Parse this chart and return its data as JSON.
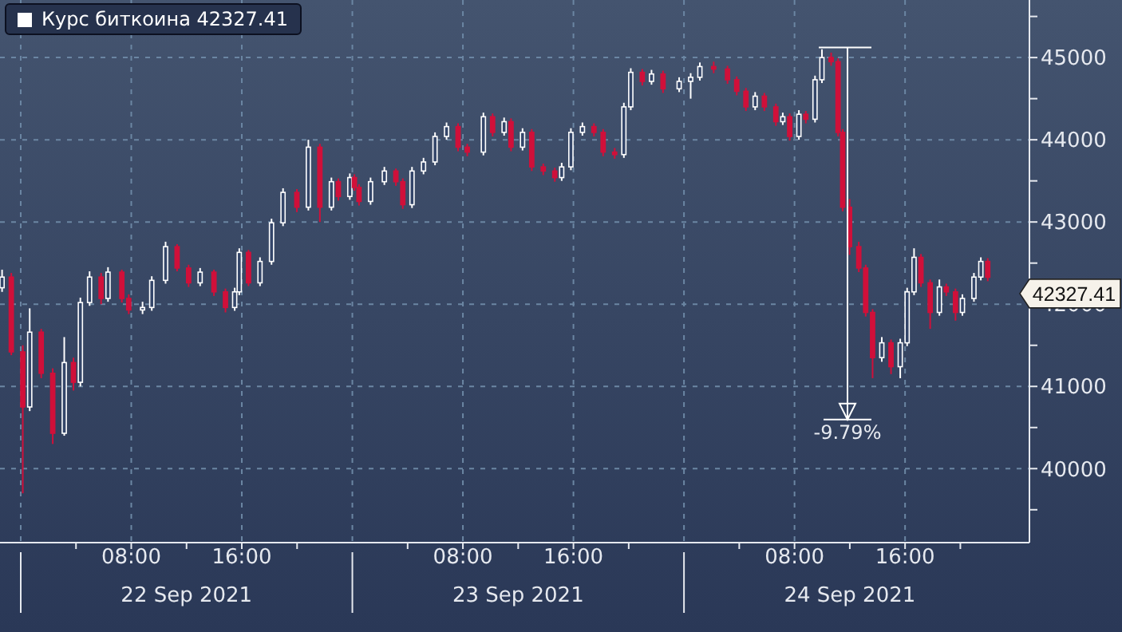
{
  "chart_data": {
    "type": "candlestick",
    "legend": "top left",
    "grid": true,
    "xlim": [
      "2021-09-21T22:30",
      "2021-09-25T01:00"
    ],
    "xticks": [
      {
        "value": "2021-09-22T04:00",
        "label": null
      },
      {
        "value": "2021-09-22T08:00",
        "label": "08:00"
      },
      {
        "value": "2021-09-22T12:00",
        "label": null
      },
      {
        "value": "2021-09-22T16:00",
        "label": "16:00"
      },
      {
        "value": "2021-09-22T20:00",
        "label": null
      },
      {
        "value": "2021-09-23T04:00",
        "label": null
      },
      {
        "value": "2021-09-23T08:00",
        "label": "08:00"
      },
      {
        "value": "2021-09-23T12:00",
        "label": null
      },
      {
        "value": "2021-09-23T16:00",
        "label": "16:00"
      },
      {
        "value": "2021-09-23T20:00",
        "label": null
      },
      {
        "value": "2021-09-24T04:00",
        "label": null
      },
      {
        "value": "2021-09-24T08:00",
        "label": "08:00"
      },
      {
        "value": "2021-09-24T12:00",
        "label": null
      },
      {
        "value": "2021-09-24T16:00",
        "label": "16:00"
      },
      {
        "value": "2021-09-24T20:00",
        "label": null
      }
    ],
    "x2lim": [
      "2021-09-21T22:30",
      "2021-09-25T01:00"
    ],
    "x2ticks": [
      {
        "value": "2021-09-22T00:00",
        "label": null
      },
      {
        "value": "2021-09-22T12:00",
        "label": "22 Sep 2021"
      },
      {
        "value": "2021-09-23T00:00",
        "label": null
      },
      {
        "value": "2021-09-23T12:00",
        "label": "23 Sep 2021"
      },
      {
        "value": "2021-09-24T00:00",
        "label": null
      },
      {
        "value": "2021-09-24T12:00",
        "label": "24 Sep 2021"
      }
    ],
    "ylim": [
      39100,
      45700
    ],
    "yticks": [
      {
        "value": 39500,
        "label": null
      },
      40000,
      {
        "value": 40500,
        "label": null
      },
      41000,
      {
        "value": 41500,
        "label": null
      },
      42000,
      {
        "value": 42500,
        "label": null
      },
      43000,
      {
        "value": 43500,
        "label": null
      },
      44000,
      {
        "value": 44500,
        "label": null
      },
      45000,
      {
        "value": 45500,
        "label": null
      }
    ],
    "annotations": [
      "-9.79%"
    ],
    "series": [
      {
        "name": "Курс биткоина 42327.41",
        "color": "#ffffff",
        "colors": [
          "#ffffff",
          "#d0103a",
          "#d0103a",
          "#ffffff",
          "#d0103a",
          "#d0103a",
          "#ffffff",
          "#d0103a",
          "#ffffff",
          "#ffffff",
          "#d0103a",
          "#ffffff",
          "#d0103a",
          "#d0103a",
          "#ffffff",
          "#ffffff",
          "#ffffff",
          "#d0103a",
          "#d0103a",
          "#ffffff",
          "#d0103a",
          "#d0103a",
          "#ffffff",
          "#ffffff",
          "#d0103a",
          "#ffffff",
          "#ffffff",
          "#ffffff",
          "#d0103a",
          "#ffffff",
          "#d0103a",
          "#ffffff",
          "#d0103a",
          "#ffffff",
          "#d0103a",
          "#d0103a",
          "#ffffff",
          "#ffffff",
          "#d0103a",
          "#d0103a",
          "#ffffff",
          "#ffffff",
          "#ffffff",
          "#ffffff",
          "#d0103a",
          "#d0103a",
          "#ffffff",
          "#d0103a",
          "#ffffff",
          "#d0103a",
          "#ffffff",
          "#d0103a",
          "#d0103a",
          "#d0103a",
          "#ffffff",
          "#ffffff",
          "#ffffff",
          "#d0103a",
          "#d0103a",
          "#d0103a",
          "#ffffff",
          "#ffffff",
          "#d0103a",
          "#ffffff",
          "#d0103a",
          "#ffffff",
          "#ffffff",
          "#ffffff",
          "#d0103a",
          "#d0103a",
          "#d0103a",
          "#d0103a",
          "#ffffff",
          "#d0103a",
          "#d0103a",
          "#ffffff",
          "#d0103a",
          "#ffffff",
          "#d0103a",
          "#ffffff",
          "#ffffff",
          "#d0103a",
          "#d0103a",
          "#d0103a",
          "#d0103a",
          "#d0103a",
          "#d0103a",
          "#d0103a",
          "#ffffff",
          "#d0103a",
          "#ffffff",
          "#ffffff",
          "#ffffff",
          "#d0103a",
          "#d0103a",
          "#ffffff",
          "#d0103a",
          "#d0103a",
          "#ffffff",
          "#ffffff",
          "#ffffff",
          "#d0103a"
        ],
        "value_labels": [
          null,
          null,
          null,
          null,
          null,
          null,
          null,
          null,
          null,
          null,
          null,
          null,
          null,
          null,
          null,
          null,
          null,
          null,
          null,
          null,
          null,
          null,
          null,
          null,
          null,
          null,
          null,
          null,
          null,
          null,
          null,
          null,
          null,
          null,
          null,
          null,
          null,
          null,
          null,
          null,
          null,
          null,
          null,
          null,
          null,
          null,
          null,
          null,
          null,
          null,
          null,
          null,
          null,
          null,
          null,
          null,
          null,
          null,
          null,
          null,
          null,
          null,
          null,
          null,
          null,
          null,
          null,
          null,
          null,
          null,
          null,
          null,
          null,
          null,
          null,
          null,
          null,
          null,
          null,
          null,
          null,
          null,
          null,
          null,
          null,
          null,
          null,
          null,
          null,
          null,
          null,
          null,
          null,
          null,
          null,
          null,
          null,
          null,
          null,
          null,
          null,
          "42327.41"
        ],
        "x": [
          "2021-09-21T22:40",
          "2021-09-21T23:20",
          "2021-09-22T00:10",
          "2021-09-22T00:40",
          "2021-09-22T01:30",
          "2021-09-22T02:20",
          "2021-09-22T03:10",
          "2021-09-22T03:50",
          "2021-09-22T04:20",
          "2021-09-22T05:00",
          "2021-09-22T05:50",
          "2021-09-22T06:20",
          "2021-09-22T07:20",
          "2021-09-22T07:50",
          "2021-09-22T08:50",
          "2021-09-22T09:30",
          "2021-09-22T10:30",
          "2021-09-22T11:20",
          "2021-09-22T12:10",
          "2021-09-22T13:00",
          "2021-09-22T14:00",
          "2021-09-22T14:50",
          "2021-09-22T15:30",
          "2021-09-22T15:50",
          "2021-09-22T16:30",
          "2021-09-22T17:20",
          "2021-09-22T18:10",
          "2021-09-22T19:00",
          "2021-09-22T20:00",
          "2021-09-22T20:50",
          "2021-09-22T21:40",
          "2021-09-22T22:30",
          "2021-09-22T23:00",
          "2021-09-22T23:50",
          "2021-09-23T00:10",
          "2021-09-23T00:30",
          "2021-09-23T01:20",
          "2021-09-23T02:20",
          "2021-09-23T03:10",
          "2021-09-23T03:40",
          "2021-09-23T04:20",
          "2021-09-23T05:10",
          "2021-09-23T06:00",
          "2021-09-23T06:50",
          "2021-09-23T07:40",
          "2021-09-23T08:20",
          "2021-09-23T09:30",
          "2021-09-23T10:10",
          "2021-09-23T11:00",
          "2021-09-23T11:30",
          "2021-09-23T12:20",
          "2021-09-23T13:00",
          "2021-09-23T13:50",
          "2021-09-23T14:40",
          "2021-09-23T15:10",
          "2021-09-23T15:50",
          "2021-09-23T16:40",
          "2021-09-23T17:30",
          "2021-09-23T18:10",
          "2021-09-23T19:00",
          "2021-09-23T19:40",
          "2021-09-23T20:10",
          "2021-09-23T21:00",
          "2021-09-23T21:40",
          "2021-09-23T22:30",
          "2021-09-23T23:40",
          "2021-09-24T00:30",
          "2021-09-24T01:10",
          "2021-09-24T02:10",
          "2021-09-24T03:10",
          "2021-09-24T03:50",
          "2021-09-24T04:30",
          "2021-09-24T05:10",
          "2021-09-24T05:50",
          "2021-09-24T06:40",
          "2021-09-24T07:10",
          "2021-09-24T07:40",
          "2021-09-24T08:20",
          "2021-09-24T08:50",
          "2021-09-24T09:30",
          "2021-09-24T10:00",
          "2021-09-24T10:40",
          "2021-09-24T11:10",
          "2021-09-24T11:30",
          "2021-09-24T12:00",
          "2021-09-24T12:40",
          "2021-09-24T13:10",
          "2021-09-24T13:40",
          "2021-09-24T14:20",
          "2021-09-24T15:00",
          "2021-09-24T15:40",
          "2021-09-24T16:10",
          "2021-09-24T16:40",
          "2021-09-24T17:10",
          "2021-09-24T17:50",
          "2021-09-24T18:30",
          "2021-09-24T19:00",
          "2021-09-24T19:40",
          "2021-09-24T20:10",
          "2021-09-24T21:00",
          "2021-09-24T21:30",
          "2021-09-24T22:00"
        ],
        "ohlc": [
          [
            42200,
            42420,
            42150,
            42330
          ],
          [
            42330,
            42380,
            41380,
            41420
          ],
          [
            41420,
            41500,
            39700,
            40750
          ],
          [
            40750,
            41950,
            40700,
            41660
          ],
          [
            41660,
            41700,
            41100,
            41160
          ],
          [
            41160,
            41220,
            40300,
            40430
          ],
          [
            40430,
            41600,
            40400,
            41290
          ],
          [
            41290,
            41350,
            40950,
            41050
          ],
          [
            41050,
            42080,
            41000,
            42020
          ],
          [
            42020,
            42400,
            41980,
            42330
          ],
          [
            42330,
            42380,
            42000,
            42070
          ],
          [
            42070,
            42450,
            42030,
            42390
          ],
          [
            42390,
            42420,
            42020,
            42070
          ],
          [
            42070,
            42120,
            41880,
            41930
          ],
          [
            41930,
            42030,
            41880,
            41960
          ],
          [
            41960,
            42340,
            41920,
            42290
          ],
          [
            42290,
            42760,
            42250,
            42700
          ],
          [
            42700,
            42730,
            42400,
            42440
          ],
          [
            42440,
            42480,
            42210,
            42260
          ],
          [
            42260,
            42440,
            42220,
            42390
          ],
          [
            42390,
            42420,
            42100,
            42150
          ],
          [
            42150,
            42190,
            41900,
            41960
          ],
          [
            41960,
            42200,
            41920,
            42150
          ],
          [
            42150,
            42680,
            42110,
            42630
          ],
          [
            42630,
            42660,
            42220,
            42260
          ],
          [
            42260,
            42570,
            42220,
            42520
          ],
          [
            42520,
            43040,
            42480,
            42990
          ],
          [
            42990,
            43410,
            42950,
            43360
          ],
          [
            43360,
            43400,
            43120,
            43180
          ],
          [
            43180,
            44000,
            43140,
            43910
          ],
          [
            43910,
            43950,
            43000,
            43180
          ],
          [
            43180,
            43540,
            43140,
            43490
          ],
          [
            43490,
            43530,
            43260,
            43310
          ],
          [
            43310,
            43590,
            43270,
            43540
          ],
          [
            43540,
            43580,
            43380,
            43420
          ],
          [
            43420,
            43460,
            43200,
            43250
          ],
          [
            43250,
            43540,
            43210,
            43490
          ],
          [
            43490,
            43670,
            43450,
            43620
          ],
          [
            43620,
            43650,
            43440,
            43490
          ],
          [
            43490,
            43530,
            43160,
            43210
          ],
          [
            43210,
            43670,
            43170,
            43620
          ],
          [
            43620,
            43780,
            43580,
            43730
          ],
          [
            43730,
            44090,
            43690,
            44040
          ],
          [
            44040,
            44210,
            44000,
            44160
          ],
          [
            44160,
            44200,
            43860,
            43910
          ],
          [
            43910,
            43950,
            43800,
            43850
          ],
          [
            43850,
            44330,
            43810,
            44280
          ],
          [
            44280,
            44320,
            44040,
            44090
          ],
          [
            44090,
            44270,
            44050,
            44220
          ],
          [
            44220,
            44260,
            43860,
            43910
          ],
          [
            43910,
            44140,
            43870,
            44090
          ],
          [
            44090,
            44130,
            43620,
            43670
          ],
          [
            43670,
            43710,
            43570,
            43620
          ],
          [
            43620,
            43660,
            43490,
            43540
          ],
          [
            43540,
            43720,
            43500,
            43670
          ],
          [
            43670,
            44140,
            43630,
            44090
          ],
          [
            44090,
            44210,
            44050,
            44160
          ],
          [
            44160,
            44200,
            44040,
            44090
          ],
          [
            44090,
            44130,
            43800,
            43850
          ],
          [
            43850,
            43900,
            43770,
            43820
          ],
          [
            43820,
            44450,
            43780,
            44400
          ],
          [
            44400,
            44870,
            44360,
            44820
          ],
          [
            44820,
            44860,
            44660,
            44710
          ],
          [
            44710,
            44850,
            44670,
            44800
          ],
          [
            44800,
            44840,
            44570,
            44620
          ],
          [
            44620,
            44760,
            44580,
            44710
          ],
          [
            44710,
            44810,
            44500,
            44760
          ],
          [
            44760,
            44940,
            44720,
            44890
          ],
          [
            44890,
            44950,
            44810,
            44860
          ],
          [
            44860,
            44900,
            44680,
            44730
          ],
          [
            44730,
            44770,
            44540,
            44590
          ],
          [
            44590,
            44630,
            44350,
            44400
          ],
          [
            44400,
            44580,
            44360,
            44530
          ],
          [
            44530,
            44570,
            44350,
            44400
          ],
          [
            44400,
            44440,
            44170,
            44220
          ],
          [
            44220,
            44330,
            44180,
            44280
          ],
          [
            44280,
            44320,
            43990,
            44040
          ],
          [
            44040,
            44360,
            44000,
            44310
          ],
          [
            44310,
            44350,
            44200,
            44250
          ],
          [
            44250,
            44780,
            44210,
            44730
          ],
          [
            44730,
            45100,
            44690,
            45000
          ],
          [
            45000,
            45060,
            44900,
            44950
          ],
          [
            44950,
            44990,
            44040,
            44090
          ],
          [
            44090,
            44130,
            43130,
            43180
          ],
          [
            43180,
            43280,
            42600,
            42700
          ],
          [
            42700,
            42760,
            42390,
            42440
          ],
          [
            42440,
            42480,
            41850,
            41900
          ],
          [
            41900,
            41940,
            41100,
            41350
          ],
          [
            41350,
            41600,
            41300,
            41530
          ],
          [
            41530,
            41570,
            41150,
            41240
          ],
          [
            41240,
            41580,
            41100,
            41530
          ],
          [
            41530,
            42200,
            41490,
            42150
          ],
          [
            42150,
            42680,
            42110,
            42570
          ],
          [
            42570,
            42610,
            42210,
            42260
          ],
          [
            42260,
            42300,
            41700,
            41900
          ],
          [
            41900,
            42300,
            41860,
            42210
          ],
          [
            42210,
            42250,
            42100,
            42150
          ],
          [
            42150,
            42190,
            41800,
            41900
          ],
          [
            41900,
            42120,
            41860,
            42070
          ],
          [
            42070,
            42380,
            42030,
            42330
          ],
          [
            42330,
            42570,
            42290,
            42520
          ],
          [
            42520,
            42560,
            42280,
            42327.41
          ]
        ]
      }
    ]
  }
}
